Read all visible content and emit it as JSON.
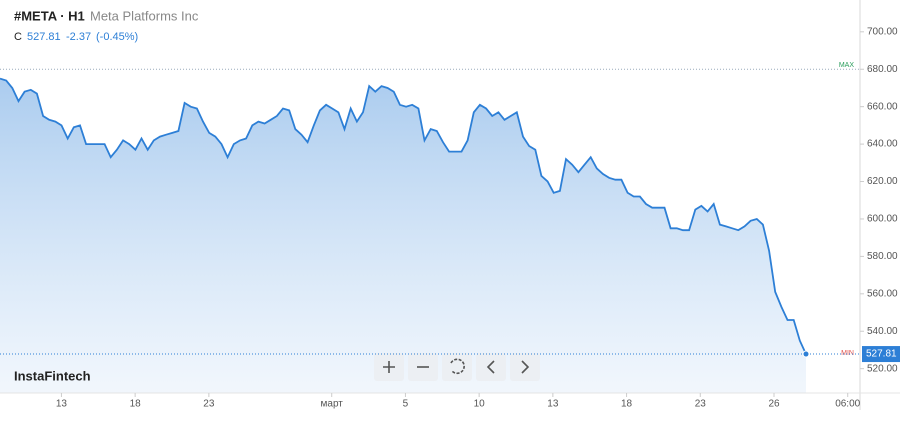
{
  "header": {
    "symbol": "#META · H1",
    "company": "Meta Platforms Inc",
    "close_prefix": "C",
    "change": -2.37,
    "change_pct": "(-0.45%)",
    "logo": "InstaFintech"
  },
  "chart_data": {
    "type": "area",
    "values": [
      675,
      674,
      670,
      663,
      668,
      669,
      667,
      655,
      653,
      652,
      650,
      643,
      649,
      650,
      640,
      640,
      640,
      640,
      633,
      637,
      642,
      640,
      637,
      643,
      637,
      642,
      644,
      645,
      646,
      647,
      662,
      660,
      659,
      652,
      646,
      644,
      640,
      633,
      640,
      642,
      643,
      650,
      652,
      651,
      653,
      655,
      659,
      658,
      648,
      645,
      641,
      650,
      658,
      661,
      659,
      657,
      648,
      659,
      652,
      657,
      671,
      668,
      671,
      670,
      668,
      661,
      660,
      661,
      659,
      642,
      648,
      647,
      641,
      636,
      636,
      636,
      642,
      657,
      661,
      659,
      655,
      657,
      653,
      655,
      657,
      644,
      639,
      637,
      623,
      620,
      614,
      615,
      632,
      629,
      625,
      629,
      633,
      627,
      624,
      622,
      621,
      621,
      614,
      612,
      612,
      608,
      606,
      606,
      606,
      595,
      595,
      594,
      594,
      605,
      607,
      604,
      608,
      597,
      596,
      595,
      594,
      596,
      599,
      600,
      597,
      583,
      561,
      553,
      546,
      546,
      535,
      527.81
    ],
    "color": "#2d7fd6",
    "xlim": [
      0,
      140
    ],
    "ylim": [
      507,
      717
    ],
    "xticks": [
      {
        "value": 10,
        "label": "13"
      },
      {
        "value": 22,
        "label": "18"
      },
      {
        "value": 34,
        "label": "23"
      },
      {
        "value": 54,
        "label": "март"
      },
      {
        "value": 66,
        "label": "5"
      },
      {
        "value": 78,
        "label": "10"
      },
      {
        "value": 90,
        "label": "13"
      },
      {
        "value": 102,
        "label": "18"
      },
      {
        "value": 114,
        "label": "23"
      },
      {
        "value": 126,
        "label": "26"
      },
      {
        "value": 138,
        "label": "06:00"
      }
    ],
    "yticks": [
      {
        "value": 520,
        "label": "520.00"
      },
      {
        "value": 540,
        "label": "540.00"
      },
      {
        "value": 560,
        "label": "560.00"
      },
      {
        "value": 580,
        "label": "580.00"
      },
      {
        "value": 600,
        "label": "600.00"
      },
      {
        "value": 620,
        "label": "620.00"
      },
      {
        "value": 640,
        "label": "640.00"
      },
      {
        "value": 660,
        "label": "660.00"
      },
      {
        "value": 680,
        "label": "680.00"
      },
      {
        "value": 700,
        "label": "700.00"
      }
    ],
    "max_level": {
      "value": 680,
      "label": "MAX"
    },
    "min_level": {
      "value": 530,
      "label": "MIN"
    },
    "last_price": 527.81,
    "grid": false
  }
}
